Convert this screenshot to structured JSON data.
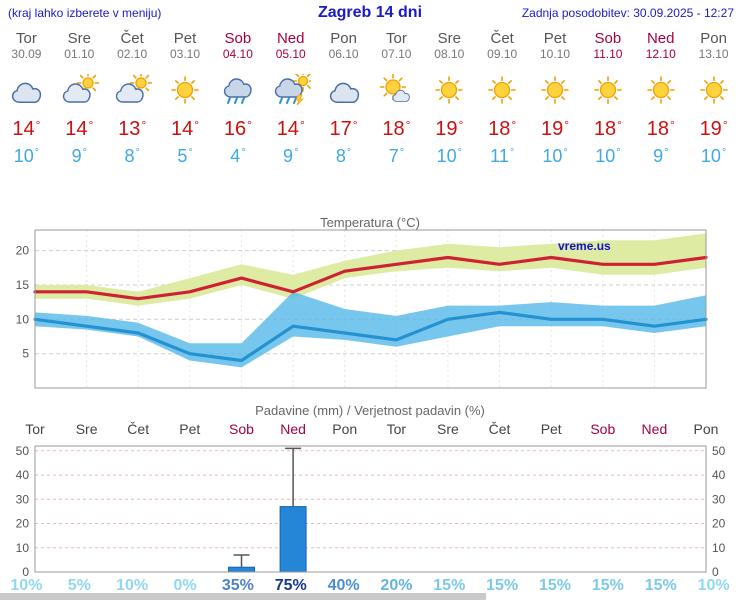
{
  "header": {
    "left_note": "(kraj lahko izberete v meniju)",
    "title": "Zagreb 14 dni",
    "updated": "Zadnja posodobitev: 30.09.2025 - 12:27"
  },
  "symbols": {
    "degree": "°"
  },
  "colors": {
    "weekend": "#a50045",
    "high_temp": "#cc1111",
    "low_temp": "#3fa9e0",
    "header_blue": "#1a1ac8"
  },
  "days": [
    {
      "name": "Tor",
      "date": "30.09",
      "weekend": false,
      "icon": "cloud",
      "high": "14",
      "low": "10"
    },
    {
      "name": "Sre",
      "date": "01.10",
      "weekend": false,
      "icon": "sun-cloud",
      "high": "14",
      "low": "9"
    },
    {
      "name": "Čet",
      "date": "02.10",
      "weekend": false,
      "icon": "sun-cloud",
      "high": "13",
      "low": "8"
    },
    {
      "name": "Pet",
      "date": "03.10",
      "weekend": false,
      "icon": "sun",
      "high": "14",
      "low": "5"
    },
    {
      "name": "Sob",
      "date": "04.10",
      "weekend": true,
      "icon": "rain",
      "high": "16",
      "low": "4"
    },
    {
      "name": "Ned",
      "date": "05.10",
      "weekend": true,
      "icon": "rain-sun",
      "high": "14",
      "low": "9"
    },
    {
      "name": "Pon",
      "date": "06.10",
      "weekend": false,
      "icon": "cloud",
      "high": "17",
      "low": "8"
    },
    {
      "name": "Tor",
      "date": "07.10",
      "weekend": false,
      "icon": "sun-small-cloud",
      "high": "18",
      "low": "7"
    },
    {
      "name": "Sre",
      "date": "08.10",
      "weekend": false,
      "icon": "sun",
      "high": "19",
      "low": "10"
    },
    {
      "name": "Čet",
      "date": "09.10",
      "weekend": false,
      "icon": "sun",
      "high": "18",
      "low": "11"
    },
    {
      "name": "Pet",
      "date": "10.10",
      "weekend": false,
      "icon": "sun",
      "high": "19",
      "low": "10"
    },
    {
      "name": "Sob",
      "date": "11.10",
      "weekend": true,
      "icon": "sun",
      "high": "18",
      "low": "10"
    },
    {
      "name": "Ned",
      "date": "12.10",
      "weekend": true,
      "icon": "sun",
      "high": "18",
      "low": "9"
    },
    {
      "name": "Pon",
      "date": "13.10",
      "weekend": false,
      "icon": "sun",
      "high": "19",
      "low": "10"
    }
  ],
  "chart_data": [
    {
      "type": "line",
      "title": "Temperatura (°C)",
      "watermark": "vreme.us",
      "categories": [
        "Tor",
        "Sre",
        "Čet",
        "Pet",
        "Sob",
        "Ned",
        "Pon",
        "Tor",
        "Sre",
        "Čet",
        "Pet",
        "Sob",
        "Ned",
        "Pon"
      ],
      "ylim": [
        0,
        23
      ],
      "yticks": [
        5,
        10,
        15,
        20
      ],
      "grid": true,
      "series": [
        {
          "name": "max-temp",
          "color": "#cc2233",
          "values": [
            14,
            14,
            13,
            14,
            16,
            14,
            17,
            18,
            19,
            18,
            19,
            18,
            18,
            19
          ]
        },
        {
          "name": "min-temp",
          "color": "#2491d0",
          "values": [
            10,
            9,
            8,
            5,
            4,
            9,
            8,
            7,
            10,
            11,
            10,
            10,
            9,
            10
          ]
        }
      ],
      "bands": [
        {
          "name": "max-temp-range",
          "color": "#dcea9e",
          "opacity": 0.95,
          "upper": [
            15,
            15,
            14,
            16,
            18,
            16.5,
            18.5,
            20,
            21,
            20.5,
            21,
            21.5,
            21.5,
            22.5
          ],
          "lower": [
            13,
            13,
            12,
            13,
            15,
            13,
            16,
            17,
            17.5,
            17,
            17.5,
            16.5,
            16.5,
            17.5
          ]
        },
        {
          "name": "min-temp-range",
          "color": "#55b8e8",
          "opacity": 0.8,
          "upper": [
            11,
            10.5,
            9.5,
            6.5,
            6.5,
            14,
            11.5,
            10.5,
            12,
            12,
            12.5,
            12,
            12,
            13.5
          ],
          "lower": [
            9,
            8.5,
            7.5,
            4,
            3,
            7.5,
            7,
            6,
            7.5,
            9,
            9,
            9,
            8,
            9
          ]
        }
      ]
    },
    {
      "type": "bar",
      "title": "Padavine (mm) / Verjetnost padavin (%)",
      "categories": [
        "Tor",
        "Sre",
        "Čet",
        "Pet",
        "Sob",
        "Ned",
        "Pon",
        "Tor",
        "Sre",
        "Čet",
        "Pet",
        "Sob",
        "Ned",
        "Pon"
      ],
      "ylim": [
        0,
        52
      ],
      "yticks": [
        0,
        10,
        20,
        30,
        40,
        50
      ],
      "values": [
        0,
        0,
        0,
        0,
        2,
        27,
        0,
        0,
        0,
        0,
        0,
        0,
        0,
        0
      ],
      "whiskers": [
        0,
        0,
        0,
        0,
        7,
        51,
        0,
        0,
        0,
        0,
        0,
        0,
        0,
        0
      ],
      "bar_color": "#2585d6",
      "bar_border": "#1566ab",
      "probabilities": [
        {
          "label": "10%",
          "color": "#90d8f2"
        },
        {
          "label": "5%",
          "color": "#90d8f2"
        },
        {
          "label": "10%",
          "color": "#90d8f2"
        },
        {
          "label": "0%",
          "color": "#90d8f2"
        },
        {
          "label": "35%",
          "color": "#4e83c4"
        },
        {
          "label": "75%",
          "color": "#16388e"
        },
        {
          "label": "40%",
          "color": "#4a8fd2"
        },
        {
          "label": "20%",
          "color": "#66b2e0"
        },
        {
          "label": "15%",
          "color": "#7cc9e8"
        },
        {
          "label": "15%",
          "color": "#7cc9e8"
        },
        {
          "label": "15%",
          "color": "#7cc9e8"
        },
        {
          "label": "15%",
          "color": "#7cc9e8"
        },
        {
          "label": "15%",
          "color": "#7cc9e8"
        },
        {
          "label": "10%",
          "color": "#90d8f2"
        }
      ]
    }
  ]
}
